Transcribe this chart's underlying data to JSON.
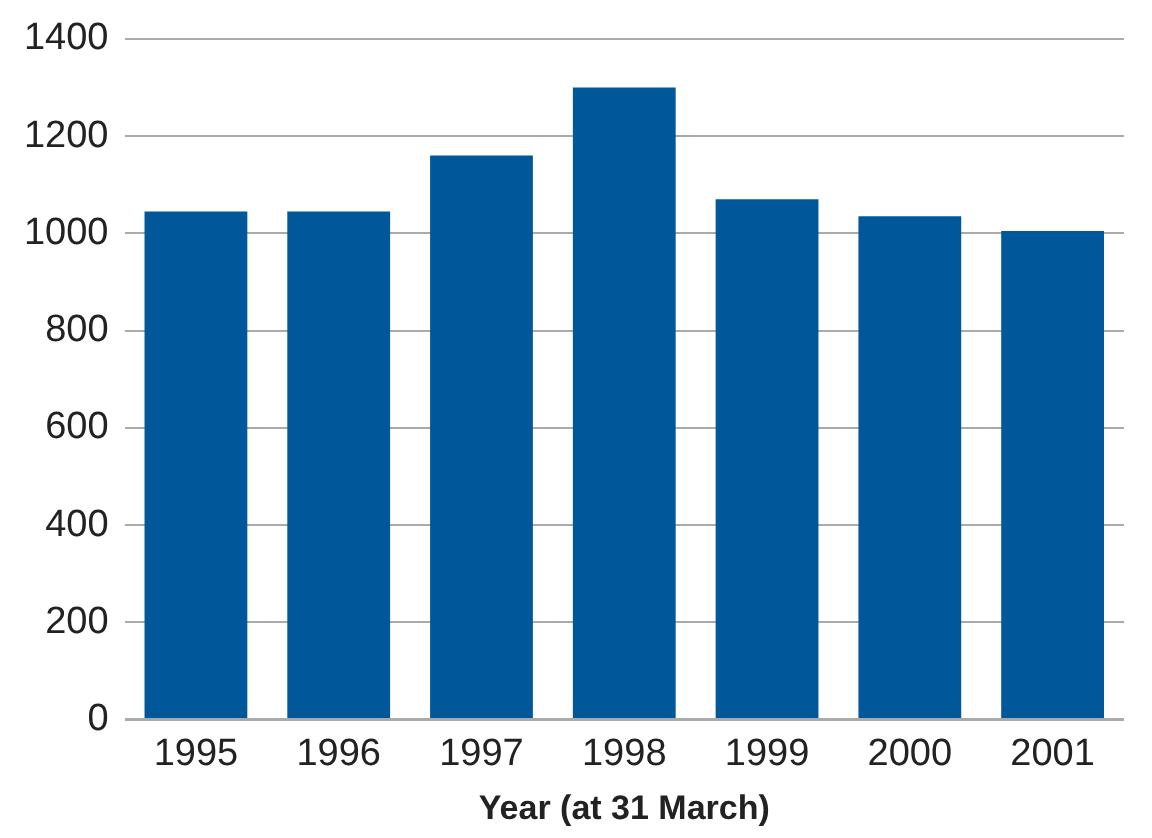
{
  "chart_data": {
    "type": "bar",
    "xlabel": "Year (at 31 March)",
    "categories": [
      "1995",
      "1996",
      "1997",
      "1998",
      "1999",
      "2000",
      "2001"
    ],
    "values": [
      1045,
      1045,
      1160,
      1300,
      1070,
      1035,
      1005
    ],
    "color": "#00589b",
    "ylim": [
      0,
      1400
    ],
    "yticks": [
      0,
      200,
      400,
      600,
      800,
      1000,
      1200,
      1400
    ],
    "grid": "y"
  }
}
